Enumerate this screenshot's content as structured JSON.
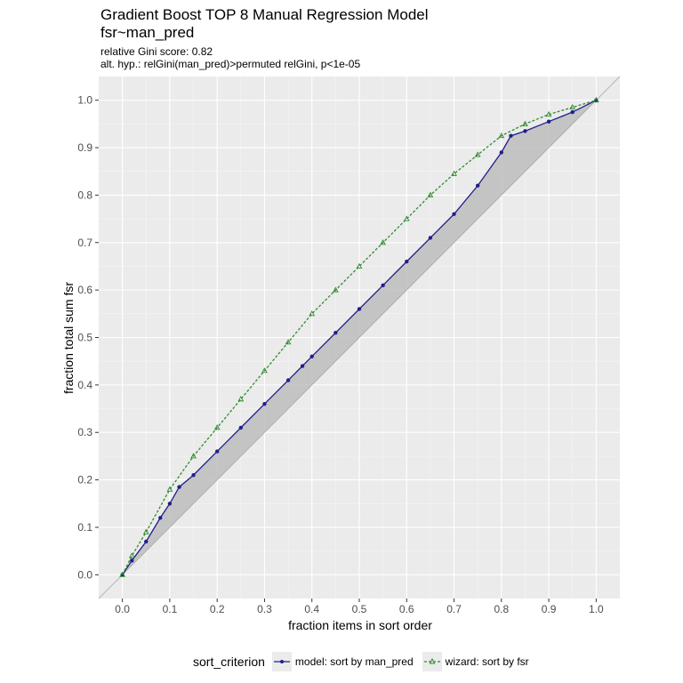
{
  "chart_data": {
    "type": "line",
    "title": "Gradient Boost TOP 8 Manual Regression Model",
    "title_line2": "fsr~man_pred",
    "subtitle_line1": "relative Gini score: 0.82",
    "subtitle_line2": "alt. hyp.: relGini(man_pred)>permuted relGini, p<1e-05",
    "xlabel": "fraction items in sort order",
    "ylabel": "fraction total sum fsr",
    "xlim": [
      -0.05,
      1.05
    ],
    "ylim": [
      -0.05,
      1.05
    ],
    "xticks": [
      "0.0",
      "0.1",
      "0.2",
      "0.3",
      "0.4",
      "0.5",
      "0.6",
      "0.7",
      "0.8",
      "0.9",
      "1.0"
    ],
    "yticks": [
      "0.0",
      "0.1",
      "0.2",
      "0.3",
      "0.4",
      "0.5",
      "0.6",
      "0.7",
      "0.8",
      "0.9",
      "1.0"
    ],
    "grid": true,
    "legend_position": "bottom",
    "legend_title": "sort_criterion",
    "series": [
      {
        "name": "model: sort by man_pred",
        "color": "#1f1f8c",
        "marker": "circle",
        "x": [
          0.0,
          0.02,
          0.05,
          0.08,
          0.1,
          0.12,
          0.15,
          0.2,
          0.25,
          0.3,
          0.35,
          0.38,
          0.4,
          0.45,
          0.5,
          0.55,
          0.6,
          0.65,
          0.7,
          0.75,
          0.8,
          0.82,
          0.85,
          0.9,
          0.95,
          1.0
        ],
        "y": [
          0.0,
          0.03,
          0.07,
          0.12,
          0.15,
          0.185,
          0.21,
          0.26,
          0.31,
          0.36,
          0.41,
          0.44,
          0.46,
          0.51,
          0.56,
          0.61,
          0.66,
          0.71,
          0.76,
          0.82,
          0.89,
          0.925,
          0.935,
          0.955,
          0.975,
          1.0
        ]
      },
      {
        "name": "wizard: sort by fsr",
        "color": "#2e8b2e",
        "marker": "triangle",
        "x": [
          0.0,
          0.02,
          0.05,
          0.1,
          0.15,
          0.2,
          0.25,
          0.3,
          0.35,
          0.4,
          0.45,
          0.5,
          0.55,
          0.6,
          0.65,
          0.7,
          0.75,
          0.8,
          0.85,
          0.9,
          0.95,
          1.0
        ],
        "y": [
          0.0,
          0.04,
          0.09,
          0.18,
          0.25,
          0.31,
          0.37,
          0.43,
          0.49,
          0.55,
          0.6,
          0.65,
          0.7,
          0.75,
          0.8,
          0.845,
          0.885,
          0.925,
          0.95,
          0.97,
          0.985,
          1.0
        ]
      }
    ]
  }
}
